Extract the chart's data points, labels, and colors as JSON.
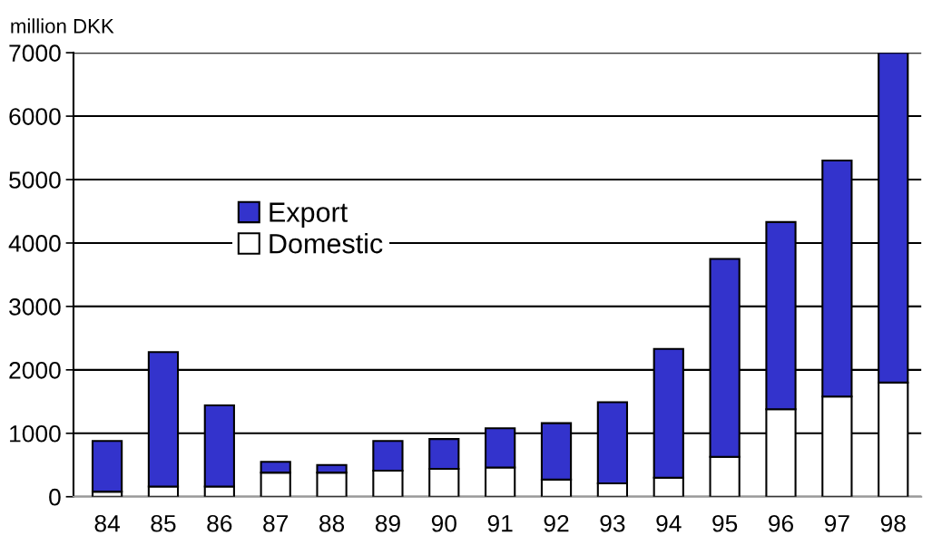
{
  "chart_data": {
    "type": "bar",
    "stacked": true,
    "ylabel": "million DKK",
    "categories": [
      "84",
      "85",
      "86",
      "87",
      "88",
      "89",
      "90",
      "91",
      "92",
      "93",
      "94",
      "95",
      "96",
      "97",
      "98"
    ],
    "series": [
      {
        "name": "Domestic",
        "color": "#ffffff",
        "values": [
          80,
          160,
          160,
          380,
          380,
          410,
          440,
          460,
          270,
          210,
          300,
          630,
          1380,
          1580,
          1800
        ]
      },
      {
        "name": "Export",
        "color": "#3333cc",
        "values": [
          800,
          2120,
          1280,
          170,
          120,
          470,
          470,
          620,
          890,
          1280,
          2030,
          3120,
          2950,
          3720,
          5200
        ]
      }
    ],
    "ylim": [
      0,
      7000
    ],
    "yticks": [
      0,
      1000,
      2000,
      3000,
      4000,
      5000,
      6000,
      7000
    ],
    "grid": "y",
    "legend": "center"
  }
}
